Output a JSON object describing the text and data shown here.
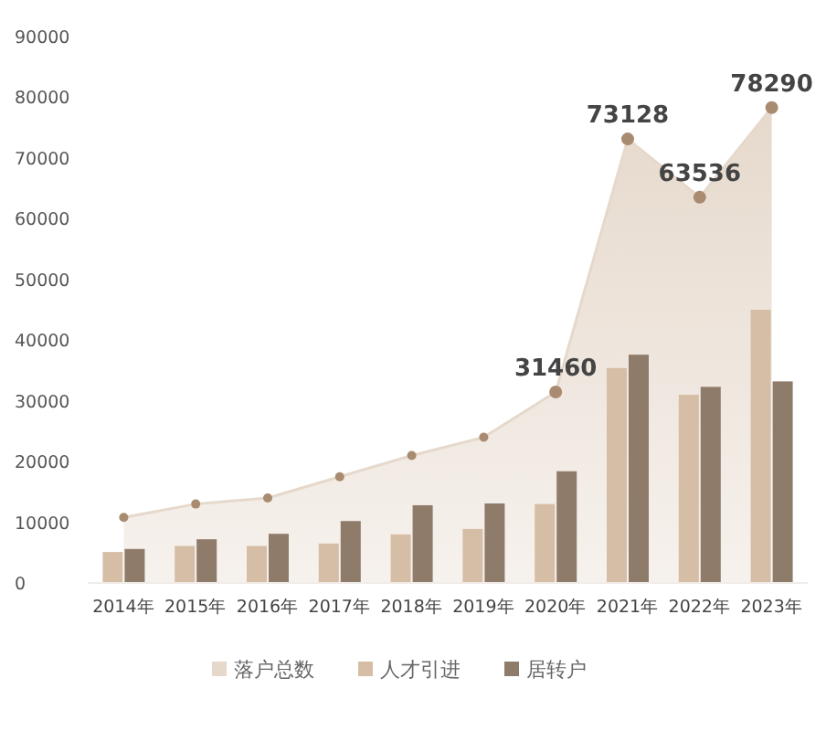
{
  "chart_data": {
    "type": "bar",
    "categories": [
      "2014年",
      "2015年",
      "2016年",
      "2017年",
      "2018年",
      "2019年",
      "2020年",
      "2021年",
      "2022年",
      "2023年"
    ],
    "series": [
      {
        "name": "落户总数",
        "type": "area",
        "color": "#e6d9cc",
        "marker": "circle",
        "values": [
          10800,
          13000,
          14000,
          17500,
          21000,
          24000,
          31460,
          73128,
          63536,
          78290
        ],
        "value_labels": [
          null,
          null,
          null,
          null,
          null,
          null,
          "31460",
          "73128",
          "63536",
          "78290"
        ]
      },
      {
        "name": "人才引进",
        "color": "#d6bda6",
        "values": [
          5100,
          6100,
          6100,
          6500,
          8000,
          8900,
          13000,
          35400,
          31000,
          45000
        ]
      },
      {
        "name": "居转户",
        "color": "#8f7b6a",
        "values": [
          5600,
          7200,
          8100,
          10200,
          12800,
          13100,
          18400,
          37600,
          32300,
          33200
        ]
      }
    ],
    "ylim": [
      0,
      90000
    ],
    "yticks": [
      0,
      10000,
      20000,
      30000,
      40000,
      50000,
      60000,
      70000,
      80000,
      90000
    ],
    "grid": false,
    "legend": "bottom"
  }
}
